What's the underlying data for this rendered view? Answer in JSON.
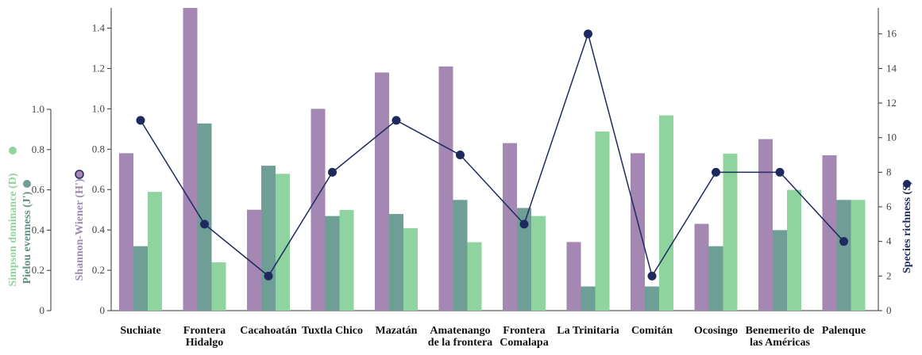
{
  "chart_data": {
    "type": "bar",
    "categories": [
      [
        "Suchiate"
      ],
      [
        "Frontera",
        "Hidalgo"
      ],
      [
        "Cacahoatán"
      ],
      [
        "Tuxtla Chico"
      ],
      [
        "Mazatán"
      ],
      [
        "Amatenango",
        "de la frontera"
      ],
      [
        "Frontera",
        "Comalapa"
      ],
      [
        "La Trinitaria"
      ],
      [
        "Comitán"
      ],
      [
        "Ocosingo"
      ],
      [
        "Benemerito de",
        "las Américas"
      ],
      [
        "Palenque"
      ]
    ],
    "series": [
      {
        "name": "Shannon-Wiener (H')",
        "axis": "left-outer",
        "color": "#a487b3",
        "values": [
          0.78,
          1.5,
          0.5,
          1.0,
          1.18,
          1.21,
          0.83,
          0.34,
          0.78,
          0.43,
          0.85,
          0.77
        ]
      },
      {
        "name": "Pielou evenness (J')",
        "axis": "left-inner",
        "color": "#6e9e96",
        "values": [
          0.32,
          0.93,
          0.72,
          0.47,
          0.48,
          0.55,
          0.51,
          0.12,
          0.12,
          0.32,
          0.4,
          0.55
        ]
      },
      {
        "name": "Simpson dominance (D)",
        "axis": "left-inner",
        "color": "#8fd49e",
        "values": [
          0.59,
          0.24,
          0.68,
          0.5,
          0.41,
          0.34,
          0.47,
          0.89,
          0.97,
          0.78,
          0.6,
          0.55
        ]
      },
      {
        "name": "Species richness (S)",
        "axis": "right",
        "type": "line",
        "color": "#1e2a5e",
        "values": [
          11,
          5,
          2,
          8,
          11,
          9,
          5,
          16,
          2,
          8,
          8,
          4
        ]
      }
    ],
    "axes": {
      "left_outer": {
        "label": "Shannon-Wiener (H')",
        "range": [
          0,
          1.5
        ],
        "ticks": [
          "0",
          "0.2",
          "0.4",
          "0.6",
          "0.8",
          "1.0",
          "1.2",
          "1.4"
        ]
      },
      "left_inner": {
        "labels": [
          "Simpson dominance  (D)",
          "Pielou evenness (J')"
        ],
        "range": [
          0,
          1.0
        ],
        "ticks": [
          "0",
          "0.2",
          "0.4",
          "0.6",
          "0.8",
          "1.0"
        ]
      },
      "right": {
        "label": "Species richness (S)",
        "range": [
          0,
          17.5
        ],
        "ticks": [
          "0",
          "2",
          "4",
          "6",
          "8",
          "10",
          "12",
          "14",
          "16"
        ]
      }
    },
    "grid": false,
    "legend": "none"
  }
}
